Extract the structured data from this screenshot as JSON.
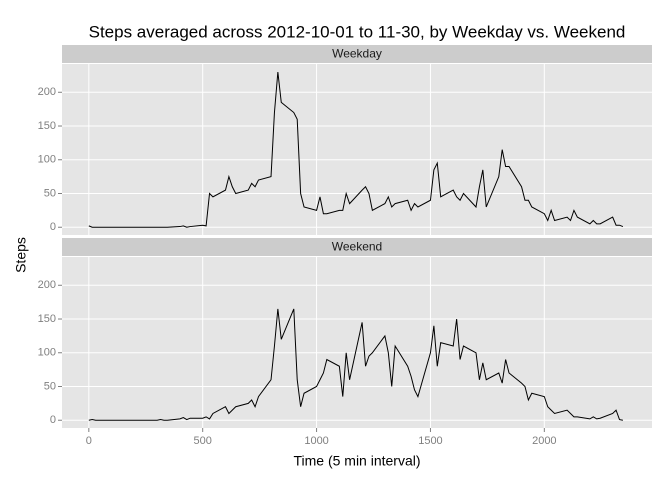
{
  "chart_data": {
    "type": "line",
    "title": "Steps averaged across 2012-10-01 to 11-30, by Weekday vs. Weekend",
    "x_label": "Time (5 min interval)",
    "y_label": "Steps",
    "color": "#000000",
    "grid": true,
    "xlim": [
      -117.75,
      2472.75
    ],
    "xticks": [
      0,
      500,
      1000,
      1500,
      2000
    ],
    "ylim": [
      -11.5,
      241.9
    ],
    "yticks": [
      0,
      50,
      100,
      150,
      200
    ],
    "x": [
      0,
      15,
      30,
      45,
      100,
      115,
      130,
      145,
      200,
      215,
      230,
      245,
      300,
      315,
      330,
      345,
      400,
      415,
      430,
      445,
      500,
      515,
      530,
      545,
      600,
      615,
      630,
      645,
      700,
      715,
      730,
      745,
      800,
      815,
      830,
      845,
      900,
      915,
      930,
      945,
      1000,
      1015,
      1030,
      1045,
      1100,
      1115,
      1130,
      1145,
      1200,
      1215,
      1230,
      1245,
      1300,
      1315,
      1330,
      1345,
      1400,
      1415,
      1430,
      1445,
      1500,
      1515,
      1530,
      1545,
      1600,
      1615,
      1630,
      1645,
      1700,
      1715,
      1730,
      1745,
      1800,
      1815,
      1830,
      1845,
      1900,
      1915,
      1930,
      1945,
      2000,
      2015,
      2030,
      2045,
      2100,
      2115,
      2130,
      2145,
      2200,
      2215,
      2230,
      2245,
      2300,
      2315,
      2330,
      2345
    ],
    "series": [
      {
        "name": "Weekday",
        "values": [
          2,
          0,
          0,
          0,
          0,
          0,
          0,
          0,
          0,
          0,
          0,
          0,
          0,
          0,
          0,
          0,
          1,
          2,
          0,
          1,
          3,
          2,
          50,
          45,
          55,
          75,
          60,
          50,
          55,
          65,
          60,
          70,
          75,
          170,
          230,
          185,
          170,
          160,
          50,
          30,
          25,
          45,
          20,
          20,
          25,
          25,
          50,
          35,
          55,
          60,
          50,
          25,
          35,
          45,
          30,
          35,
          40,
          25,
          35,
          30,
          40,
          85,
          95,
          45,
          55,
          45,
          40,
          50,
          30,
          60,
          85,
          30,
          75,
          115,
          90,
          90,
          60,
          40,
          40,
          30,
          20,
          10,
          25,
          10,
          15,
          10,
          25,
          15,
          5,
          10,
          5,
          5,
          15,
          3,
          3,
          1
        ]
      },
      {
        "name": "Weekend",
        "values": [
          0,
          1,
          0,
          0,
          0,
          0,
          0,
          0,
          0,
          0,
          0,
          0,
          0,
          1,
          0,
          0,
          2,
          4,
          1,
          3,
          3,
          5,
          2,
          10,
          20,
          10,
          15,
          20,
          25,
          30,
          20,
          35,
          60,
          110,
          165,
          120,
          165,
          60,
          20,
          40,
          50,
          60,
          70,
          90,
          80,
          35,
          100,
          60,
          145,
          80,
          95,
          100,
          125,
          100,
          50,
          110,
          80,
          65,
          45,
          35,
          100,
          140,
          80,
          115,
          110,
          150,
          90,
          110,
          100,
          60,
          85,
          60,
          70,
          55,
          90,
          70,
          55,
          50,
          30,
          40,
          35,
          20,
          15,
          10,
          15,
          10,
          5,
          5,
          2,
          5,
          2,
          3,
          10,
          15,
          1,
          0
        ]
      }
    ]
  }
}
